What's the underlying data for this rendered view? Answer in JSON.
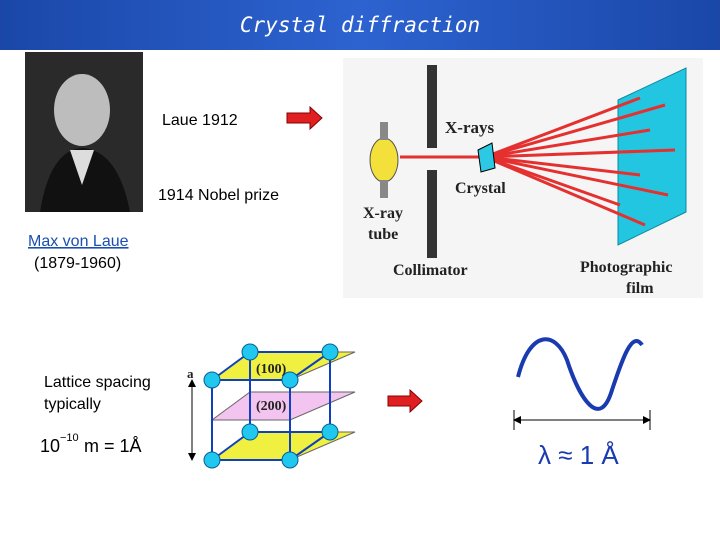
{
  "header": {
    "title": "Crystal diffraction"
  },
  "notes": [
    "Laue 1912",
    "1914 Nobel prize"
  ],
  "photo_caption": {
    "name": "Max von Laue",
    "dates": "(1879-1960)"
  },
  "lattice_text": {
    "lines": [
      "Lattice spacing",
      "typically"
    ],
    "formula": {
      "base": "10",
      "exponent": "−10",
      "rest": "m = 1Å"
    }
  },
  "xray_diagram": {
    "labels": [
      "X-rays",
      "Crystal",
      "X-ray",
      "tube",
      "Collimator",
      "Photographic",
      "film"
    ]
  },
  "lattice_diagram": {
    "labels": [
      "a",
      "(100)",
      "(200)"
    ]
  },
  "wave": {
    "label": "λ ≈ 1 Å"
  }
}
